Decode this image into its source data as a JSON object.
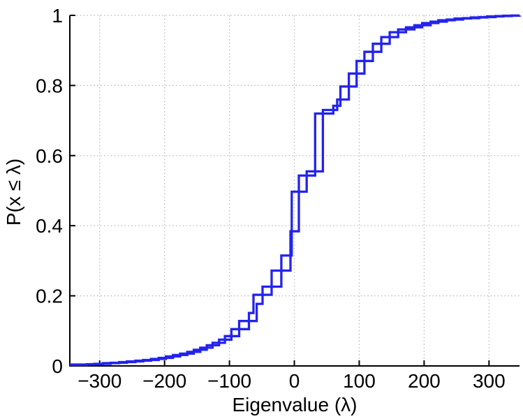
{
  "figure": {
    "xlabel": "Eigenvalue (λ)",
    "ylabel": "P(x ≤ λ)"
  },
  "chart_data": {
    "type": "line",
    "subtype": "empirical-cdf-stairs",
    "title": "",
    "xlabel": "Eigenvalue (λ)",
    "ylabel": "P(x ≤ λ)",
    "xlim": [
      -346,
      347
    ],
    "ylim": [
      0,
      1
    ],
    "x_ticks": [
      -300,
      -200,
      -100,
      0,
      100,
      200,
      300
    ],
    "x_tick_labels": [
      "−300",
      "−200",
      "−100",
      "0",
      "100",
      "200",
      "300"
    ],
    "y_ticks": [
      0,
      0.2,
      0.4,
      0.6,
      0.8,
      1
    ],
    "y_tick_labels": [
      "0",
      "0.2",
      "0.4",
      "0.6",
      "0.8",
      "1"
    ],
    "grid": "dotted",
    "legend": "none",
    "line_color": "#2323ee",
    "line_width": 3.3,
    "series": [
      {
        "name": "cdf-curve-1",
        "points": [
          [
            -346,
            0.003
          ],
          [
            -320,
            0.005
          ],
          [
            -295,
            0.008
          ],
          [
            -270,
            0.011
          ],
          [
            -245,
            0.015
          ],
          [
            -221,
            0.02
          ],
          [
            -198,
            0.027
          ],
          [
            -176,
            0.035
          ],
          [
            -155,
            0.046
          ],
          [
            -135,
            0.059
          ],
          [
            -116,
            0.075
          ],
          [
            -97,
            0.105
          ],
          [
            -70,
            0.151
          ],
          [
            -63,
            0.203
          ],
          [
            -35,
            0.272
          ],
          [
            -6,
            0.384
          ],
          [
            7,
            0.543
          ],
          [
            32,
            0.72
          ],
          [
            60,
            0.742
          ],
          [
            71,
            0.797
          ],
          [
            96,
            0.87
          ],
          [
            121,
            0.919
          ],
          [
            147,
            0.952
          ],
          [
            172,
            0.966
          ],
          [
            197,
            0.978
          ],
          [
            222,
            0.986
          ],
          [
            247,
            0.991
          ],
          [
            272,
            0.994
          ],
          [
            297,
            0.997
          ],
          [
            322,
            0.999
          ],
          [
            347,
            1.0
          ]
        ]
      },
      {
        "name": "cdf-curve-2",
        "points": [
          [
            -346,
            0.004
          ],
          [
            -308,
            0.006
          ],
          [
            -283,
            0.009
          ],
          [
            -258,
            0.013
          ],
          [
            -233,
            0.017
          ],
          [
            -209,
            0.023
          ],
          [
            -187,
            0.031
          ],
          [
            -165,
            0.04
          ],
          [
            -145,
            0.052
          ],
          [
            -126,
            0.066
          ],
          [
            -107,
            0.085
          ],
          [
            -85,
            0.128
          ],
          [
            -58,
            0.177
          ],
          [
            -49,
            0.226
          ],
          [
            -20,
            0.315
          ],
          [
            -4,
            0.497
          ],
          [
            19,
            0.555
          ],
          [
            44,
            0.73
          ],
          [
            66,
            0.76
          ],
          [
            84,
            0.834
          ],
          [
            108,
            0.896
          ],
          [
            134,
            0.938
          ],
          [
            160,
            0.96
          ],
          [
            185,
            0.972
          ],
          [
            210,
            0.982
          ],
          [
            235,
            0.988
          ],
          [
            260,
            0.992
          ],
          [
            285,
            0.995
          ],
          [
            310,
            0.998
          ],
          [
            335,
            0.9995
          ],
          [
            347,
            1.0
          ]
        ]
      }
    ]
  },
  "style": {
    "axis_color": "#000000",
    "grid_color": "#b3b3b3",
    "tick_label_color": "#000000"
  }
}
